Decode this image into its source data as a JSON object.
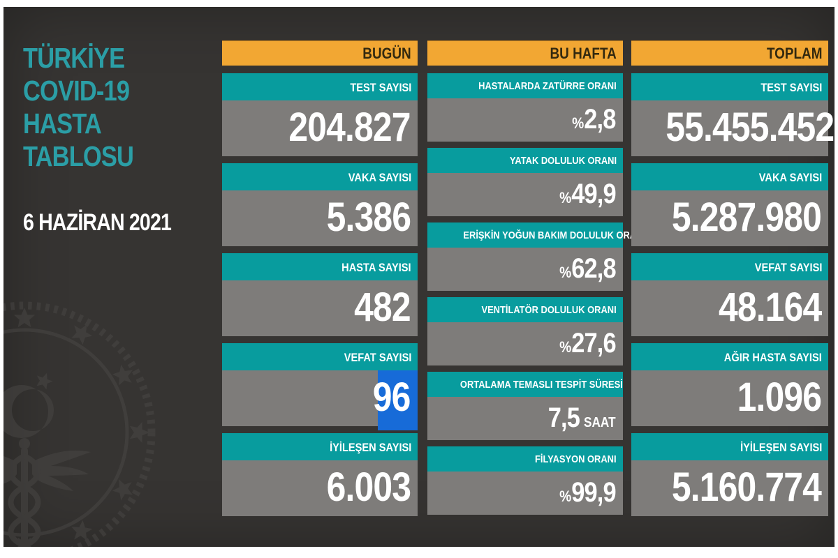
{
  "panel": {
    "title_lines": [
      "TÜRKİYE",
      "COVID-19",
      "HASTA",
      "TABLOSU"
    ]
  },
  "emblem": {
    "name": "turkey-health-ministry-emblem"
  },
  "colors": {
    "canvas_bg": "#363432",
    "header_orange": "#f2a733",
    "header_text": "#33290f",
    "teal_band": "#089c9e",
    "gray_value_box": "#7e7c7a",
    "title_teal": "#2b9ea6",
    "highlight_blue": "#176bd8",
    "value_text": "#ffffff"
  },
  "chart_data": {
    "type": "table",
    "title": "TÜRKİYE COVID-19 HASTA TABLOSU",
    "date": "6 HAZİRAN 2021",
    "columns": [
      {
        "header": "BUGÜN",
        "cards": [
          {
            "label": "TEST SAYISI",
            "value": "204.827",
            "numeric": 204827
          },
          {
            "label": "VAKA SAYISI",
            "value": "5.386",
            "numeric": 5386
          },
          {
            "label": "HASTA SAYISI",
            "value": "482",
            "numeric": 482
          },
          {
            "label": "VEFAT SAYISI",
            "value": "96",
            "numeric": 96,
            "highlighted": true
          },
          {
            "label": "İYİLEŞEN SAYISI",
            "value": "6.003",
            "numeric": 6003
          }
        ]
      },
      {
        "header": "BU HAFTA",
        "cards": [
          {
            "label": "HASTALARDA ZATÜRRE ORANI",
            "prefix": "%",
            "value": "2,8",
            "numeric": 2.8
          },
          {
            "label": "YATAK DOLULUK ORANI",
            "prefix": "%",
            "value": "49,9",
            "numeric": 49.9
          },
          {
            "label": "ERİŞKİN YOĞUN BAKIM DOLULUK ORANI",
            "prefix": "%",
            "value": "62,8",
            "numeric": 62.8
          },
          {
            "label": "VENTİLATÖR DOLULUK ORANI",
            "prefix": "%",
            "value": "27,6",
            "numeric": 27.6
          },
          {
            "label": "ORTALAMA TEMASLI TESPİT SÜRESİ",
            "value": "7,5",
            "suffix": "SAAT",
            "numeric": 7.5
          },
          {
            "label": "FİLYASYON ORANI",
            "prefix": "%",
            "value": "99,9",
            "numeric": 99.9
          }
        ]
      },
      {
        "header": "TOPLAM",
        "cards": [
          {
            "label": "TEST SAYISI",
            "value": "55.455.452",
            "numeric": 55455452
          },
          {
            "label": "VAKA SAYISI",
            "value": "5.287.980",
            "numeric": 5287980
          },
          {
            "label": "VEFAT SAYISI",
            "value": "48.164",
            "numeric": 48164
          },
          {
            "label": "AĞIR HASTA SAYISI",
            "value": "1.096",
            "numeric": 1096
          },
          {
            "label": "İYİLEŞEN SAYISI",
            "value": "5.160.774",
            "numeric": 5160774
          }
        ]
      }
    ]
  }
}
